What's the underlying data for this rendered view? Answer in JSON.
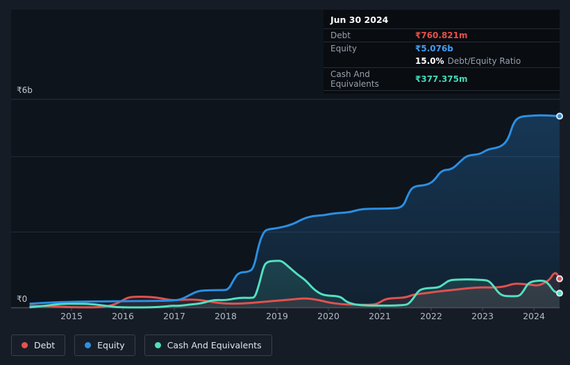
{
  "tooltip": {
    "date": "Jun 30 2024",
    "debt": {
      "label": "Debt",
      "value": "₹760.821m",
      "color": "#e5504b"
    },
    "equity": {
      "label": "Equity",
      "value": "₹5.076b",
      "color": "#3f9df3"
    },
    "ratio": {
      "value": "15.0%",
      "label": "Debt/Equity Ratio"
    },
    "cash": {
      "label": "Cash And Equivalents",
      "value": "₹377.375m",
      "color": "#40dbb7"
    }
  },
  "legend": {
    "items": [
      {
        "label": "Debt",
        "color": "#e5534f"
      },
      {
        "label": "Equity",
        "color": "#2d8fe3"
      },
      {
        "label": "Cash And Equivalents",
        "color": "#4ce0bd"
      }
    ]
  },
  "chart_data": {
    "type": "line",
    "description": "Debt, Equity and Cash history in ₹ billions, mid-2014 to Jun 30 2024",
    "x_ticks": [
      2015,
      2016,
      2017,
      2018,
      2019,
      2020,
      2021,
      2022,
      2023,
      2024
    ],
    "y_axis": {
      "max_label": "₹6b",
      "zero_label": "₹0",
      "unit": "₹ billions",
      "gridlines": [
        2,
        4
      ],
      "ylim": [
        0,
        6
      ]
    },
    "last_point": {
      "date": "Jun 30 2024",
      "debt_b": 0.760821,
      "equity_b": 5.076,
      "cash_b": 0.377375,
      "debt_equity_ratio": "15.0%"
    },
    "series": [
      {
        "name": "Debt",
        "color": "#e0524e",
        "points": [
          [
            2014.2,
            0.04
          ],
          [
            2014.6,
            0.03
          ],
          [
            2015.0,
            0.005
          ],
          [
            2015.3,
            0.0
          ],
          [
            2015.6,
            0.01
          ],
          [
            2015.8,
            0.06
          ],
          [
            2015.95,
            0.15
          ],
          [
            2016.1,
            0.27
          ],
          [
            2016.3,
            0.285
          ],
          [
            2016.55,
            0.28
          ],
          [
            2016.75,
            0.24
          ],
          [
            2016.95,
            0.19
          ],
          [
            2017.15,
            0.2
          ],
          [
            2017.35,
            0.21
          ],
          [
            2017.55,
            0.19
          ],
          [
            2017.75,
            0.14
          ],
          [
            2018.0,
            0.1
          ],
          [
            2018.3,
            0.1
          ],
          [
            2018.6,
            0.13
          ],
          [
            2018.9,
            0.17
          ],
          [
            2019.2,
            0.2
          ],
          [
            2019.45,
            0.235
          ],
          [
            2019.6,
            0.24
          ],
          [
            2019.8,
            0.2
          ],
          [
            2020.0,
            0.13
          ],
          [
            2020.25,
            0.085
          ],
          [
            2020.5,
            0.075
          ],
          [
            2020.8,
            0.065
          ],
          [
            2020.95,
            0.09
          ],
          [
            2021.1,
            0.22
          ],
          [
            2021.25,
            0.245
          ],
          [
            2021.5,
            0.26
          ],
          [
            2021.65,
            0.34
          ],
          [
            2021.85,
            0.37
          ],
          [
            2022.1,
            0.42
          ],
          [
            2022.4,
            0.46
          ],
          [
            2022.7,
            0.51
          ],
          [
            2023.0,
            0.535
          ],
          [
            2023.25,
            0.525
          ],
          [
            2023.45,
            0.56
          ],
          [
            2023.6,
            0.63
          ],
          [
            2023.75,
            0.625
          ],
          [
            2023.95,
            0.6
          ],
          [
            2024.1,
            0.575
          ],
          [
            2024.3,
            0.72
          ],
          [
            2024.38,
            0.9
          ],
          [
            2024.44,
            0.915
          ],
          [
            2024.5,
            0.761
          ]
        ]
      },
      {
        "name": "Equity",
        "color": "#2b8fe2",
        "points": [
          [
            2014.2,
            0.1
          ],
          [
            2014.6,
            0.13
          ],
          [
            2015.0,
            0.15
          ],
          [
            2015.5,
            0.16
          ],
          [
            2016.0,
            0.165
          ],
          [
            2016.5,
            0.17
          ],
          [
            2017.0,
            0.18
          ],
          [
            2017.15,
            0.22
          ],
          [
            2017.3,
            0.33
          ],
          [
            2017.45,
            0.43
          ],
          [
            2017.6,
            0.455
          ],
          [
            2017.9,
            0.46
          ],
          [
            2018.05,
            0.46
          ],
          [
            2018.15,
            0.72
          ],
          [
            2018.25,
            0.93
          ],
          [
            2018.45,
            0.94
          ],
          [
            2018.55,
            1.05
          ],
          [
            2018.65,
            1.7
          ],
          [
            2018.75,
            2.03
          ],
          [
            2018.85,
            2.08
          ],
          [
            2019.0,
            2.1
          ],
          [
            2019.3,
            2.2
          ],
          [
            2019.5,
            2.35
          ],
          [
            2019.7,
            2.43
          ],
          [
            2019.9,
            2.44
          ],
          [
            2020.1,
            2.5
          ],
          [
            2020.4,
            2.52
          ],
          [
            2020.6,
            2.6
          ],
          [
            2020.8,
            2.62
          ],
          [
            2021.2,
            2.62
          ],
          [
            2021.45,
            2.65
          ],
          [
            2021.55,
            3.0
          ],
          [
            2021.65,
            3.22
          ],
          [
            2021.9,
            3.24
          ],
          [
            2022.05,
            3.35
          ],
          [
            2022.2,
            3.64
          ],
          [
            2022.4,
            3.66
          ],
          [
            2022.55,
            3.85
          ],
          [
            2022.7,
            4.04
          ],
          [
            2022.95,
            4.06
          ],
          [
            2023.1,
            4.2
          ],
          [
            2023.35,
            4.25
          ],
          [
            2023.5,
            4.45
          ],
          [
            2023.6,
            4.9
          ],
          [
            2023.72,
            5.07
          ],
          [
            2024.0,
            5.09
          ],
          [
            2024.2,
            5.1
          ],
          [
            2024.5,
            5.076
          ]
        ]
      },
      {
        "name": "Cash And Equivalents",
        "color": "#54dfc0",
        "points": [
          [
            2014.2,
            0.005
          ],
          [
            2014.5,
            0.045
          ],
          [
            2014.8,
            0.1
          ],
          [
            2015.1,
            0.1
          ],
          [
            2015.4,
            0.09
          ],
          [
            2015.6,
            0.055
          ],
          [
            2015.85,
            0.01
          ],
          [
            2016.1,
            0.0
          ],
          [
            2016.5,
            0.0
          ],
          [
            2016.8,
            0.02
          ],
          [
            2016.95,
            0.045
          ],
          [
            2017.1,
            0.04
          ],
          [
            2017.3,
            0.075
          ],
          [
            2017.55,
            0.11
          ],
          [
            2017.75,
            0.2
          ],
          [
            2018.0,
            0.19
          ],
          [
            2018.2,
            0.24
          ],
          [
            2018.35,
            0.26
          ],
          [
            2018.5,
            0.25
          ],
          [
            2018.57,
            0.27
          ],
          [
            2018.65,
            0.6
          ],
          [
            2018.73,
            1.05
          ],
          [
            2018.8,
            1.22
          ],
          [
            2019.0,
            1.24
          ],
          [
            2019.1,
            1.23
          ],
          [
            2019.25,
            1.05
          ],
          [
            2019.4,
            0.87
          ],
          [
            2019.55,
            0.73
          ],
          [
            2019.7,
            0.5
          ],
          [
            2019.85,
            0.35
          ],
          [
            2020.0,
            0.31
          ],
          [
            2020.15,
            0.3
          ],
          [
            2020.25,
            0.27
          ],
          [
            2020.35,
            0.15
          ],
          [
            2020.5,
            0.08
          ],
          [
            2020.65,
            0.055
          ],
          [
            2020.9,
            0.048
          ],
          [
            2021.2,
            0.047
          ],
          [
            2021.45,
            0.06
          ],
          [
            2021.55,
            0.08
          ],
          [
            2021.65,
            0.23
          ],
          [
            2021.75,
            0.44
          ],
          [
            2021.85,
            0.5
          ],
          [
            2022.0,
            0.515
          ],
          [
            2022.15,
            0.53
          ],
          [
            2022.25,
            0.62
          ],
          [
            2022.35,
            0.72
          ],
          [
            2022.5,
            0.74
          ],
          [
            2022.75,
            0.745
          ],
          [
            2023.0,
            0.73
          ],
          [
            2023.12,
            0.71
          ],
          [
            2023.22,
            0.56
          ],
          [
            2023.32,
            0.37
          ],
          [
            2023.42,
            0.3
          ],
          [
            2023.6,
            0.295
          ],
          [
            2023.72,
            0.3
          ],
          [
            2023.8,
            0.44
          ],
          [
            2023.88,
            0.63
          ],
          [
            2023.97,
            0.69
          ],
          [
            2024.1,
            0.71
          ],
          [
            2024.22,
            0.705
          ],
          [
            2024.3,
            0.6
          ],
          [
            2024.38,
            0.44
          ],
          [
            2024.45,
            0.39
          ],
          [
            2024.5,
            0.377
          ]
        ]
      }
    ]
  }
}
